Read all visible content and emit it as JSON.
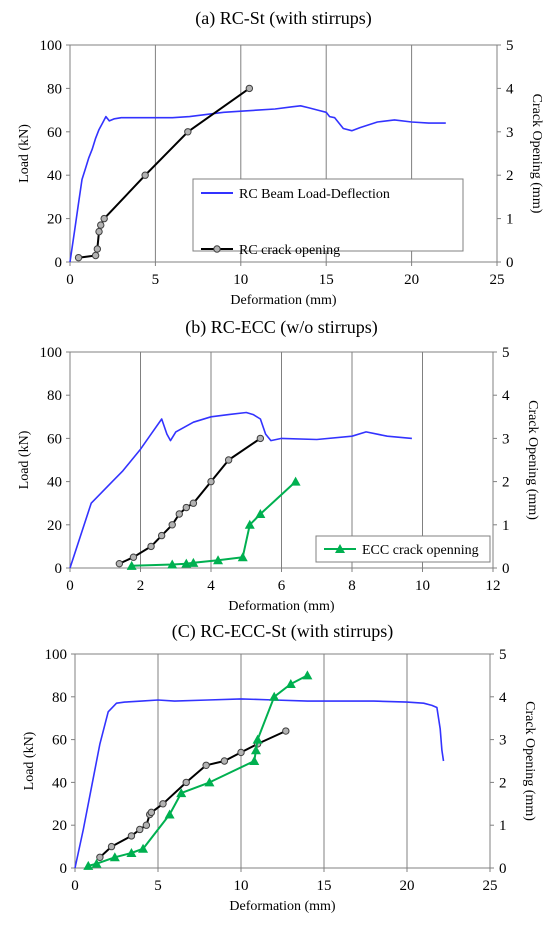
{
  "chart_data": [
    {
      "type": "line",
      "title": "(a) RC-St (with stirrups)",
      "xlabel": "Deformation (mm)",
      "ylabel": "Load (kN)",
      "y2label": "Crack Opening (mm)",
      "xlim": [
        0,
        25
      ],
      "ylim": [
        0,
        100
      ],
      "y2lim": [
        0,
        5
      ],
      "xticks": [
        "0",
        "5",
        "10",
        "15",
        "20",
        "25"
      ],
      "yticks": [
        "0",
        "20",
        "40",
        "60",
        "80",
        "100"
      ],
      "y2ticks": [
        "0",
        "1",
        "2",
        "3",
        "4",
        "5"
      ],
      "grid": "vertical",
      "legend_position": "bottom-right",
      "series": [
        {
          "name": "RC Beam Load-Deflection",
          "axis": "left",
          "color": "#3333ff",
          "marker": "none",
          "x": [
            0,
            0.3,
            0.5,
            0.7,
            0.9,
            1.1,
            1.3,
            1.5,
            1.7,
            1.9,
            2.1,
            2.3,
            2.6,
            3,
            4,
            5,
            6,
            7,
            8,
            9,
            10,
            11,
            12,
            13,
            13.5,
            14,
            14.5,
            15,
            15.2,
            15.5,
            16,
            16.5,
            17,
            18,
            19,
            20,
            21,
            22
          ],
          "y": [
            0,
            16,
            27,
            38,
            43,
            48,
            52,
            57,
            61,
            64,
            67,
            65,
            66,
            66.5,
            66.5,
            66.5,
            66.5,
            67,
            68,
            69,
            69.5,
            70,
            70.5,
            71.5,
            72,
            71,
            70,
            69,
            67,
            66.5,
            61.5,
            60.5,
            62,
            64.5,
            65.5,
            64.5,
            64,
            64
          ]
        },
        {
          "name": "RC crack opening",
          "axis": "right",
          "color": "#000000",
          "marker": "circle",
          "x": [
            0.5,
            1.5,
            1.6,
            1.7,
            1.8,
            2,
            4.4,
            6.9,
            10.5
          ],
          "y": [
            0.1,
            0.15,
            0.3,
            0.7,
            0.85,
            1,
            2,
            3,
            4
          ]
        }
      ]
    },
    {
      "type": "line",
      "title": "(b) RC-ECC (w/o stirrups)",
      "xlabel": "Deformation (mm)",
      "ylabel": "Load (kN)",
      "y2label": "Crack Opening (mm)",
      "xlim": [
        0,
        12
      ],
      "ylim": [
        0,
        100
      ],
      "y2lim": [
        0,
        5
      ],
      "xticks": [
        "0",
        "2",
        "4",
        "6",
        "8",
        "10",
        "12"
      ],
      "yticks": [
        "0",
        "20",
        "40",
        "60",
        "80",
        "100"
      ],
      "y2ticks": [
        "0",
        "1",
        "2",
        "3",
        "4",
        "5"
      ],
      "grid": "vertical",
      "legend_position": "bottom-right",
      "series": [
        {
          "name": "",
          "axis": "left",
          "color": "#3333ff",
          "marker": "none",
          "x": [
            0,
            0.6,
            0.9,
            1.2,
            1.5,
            2,
            2.3,
            2.6,
            2.75,
            2.85,
            3,
            3.5,
            4,
            4.5,
            5,
            5.2,
            5.4,
            5.55,
            5.7,
            6,
            7,
            8,
            8.4,
            9,
            9.7
          ],
          "y": [
            0,
            30,
            35,
            40,
            45,
            55,
            62,
            69,
            62,
            59,
            63,
            67.5,
            70,
            71,
            72,
            71,
            69,
            62,
            59,
            60,
            59.5,
            61,
            63,
            61,
            60
          ]
        },
        {
          "name": "",
          "axis": "right",
          "color": "#000000",
          "marker": "circle",
          "x": [
            1.4,
            1.8,
            2.3,
            2.6,
            2.9,
            3.1,
            3.3,
            3.5,
            4,
            4.5,
            5.4
          ],
          "y": [
            0.1,
            0.25,
            0.5,
            0.75,
            1,
            1.25,
            1.4,
            1.5,
            2,
            2.5,
            3
          ]
        },
        {
          "name": "ECC crack openning",
          "axis": "right",
          "color": "#00b050",
          "marker": "triangle",
          "x": [
            1.75,
            2.9,
            3.3,
            3.5,
            4.2,
            4.9,
            5.1,
            5.4,
            6.4
          ],
          "y": [
            0.05,
            0.08,
            0.1,
            0.12,
            0.18,
            0.25,
            1,
            1.25,
            2
          ]
        }
      ]
    },
    {
      "type": "line",
      "title": "(C) RC-ECC-St (with stirrups)",
      "xlabel": "Deformation (mm)",
      "ylabel": "Load (kN)",
      "y2label": "Crack Opening (mm)",
      "xlim": [
        0,
        25
      ],
      "ylim": [
        0,
        100
      ],
      "y2lim": [
        0,
        5
      ],
      "xticks": [
        "0",
        "5",
        "10",
        "15",
        "20",
        "25"
      ],
      "yticks": [
        "0",
        "20",
        "40",
        "60",
        "80",
        "100"
      ],
      "y2ticks": [
        "0",
        "1",
        "2",
        "3",
        "4",
        "5"
      ],
      "grid": "vertical",
      "series": [
        {
          "name": "",
          "axis": "left",
          "color": "#3333ff",
          "marker": "none",
          "x": [
            0,
            0.5,
            1,
            1.5,
            2,
            2.5,
            3,
            4,
            5,
            6,
            8,
            10,
            12,
            14,
            16,
            18,
            20,
            21,
            21.5,
            21.8,
            22,
            22.1,
            22.2
          ],
          "y": [
            0,
            18,
            38,
            58,
            73,
            77,
            77.5,
            78,
            78.5,
            78,
            78.5,
            79,
            78.5,
            78,
            78,
            78,
            77.5,
            77,
            76,
            75,
            65,
            55,
            50
          ]
        },
        {
          "name": "",
          "axis": "right",
          "color": "#000000",
          "marker": "circle",
          "x": [
            1.5,
            2.2,
            3.4,
            3.9,
            4.3,
            4.5,
            4.6,
            5.3,
            6.7,
            7.9,
            9,
            10,
            11,
            12.7
          ],
          "y": [
            0.25,
            0.5,
            0.75,
            0.9,
            1,
            1.25,
            1.3,
            1.5,
            2,
            2.4,
            2.5,
            2.7,
            2.9,
            3.2
          ]
        },
        {
          "name": "",
          "axis": "right",
          "color": "#00b050",
          "marker": "triangle",
          "x": [
            0.8,
            1.3,
            2.4,
            3.4,
            4.1,
            5.7,
            6.4,
            8.1,
            10.8,
            10.9,
            11,
            12,
            13,
            14
          ],
          "y": [
            0.05,
            0.1,
            0.25,
            0.35,
            0.45,
            1.25,
            1.75,
            2,
            2.5,
            2.75,
            3,
            4,
            4.3,
            4.5
          ]
        }
      ]
    }
  ]
}
